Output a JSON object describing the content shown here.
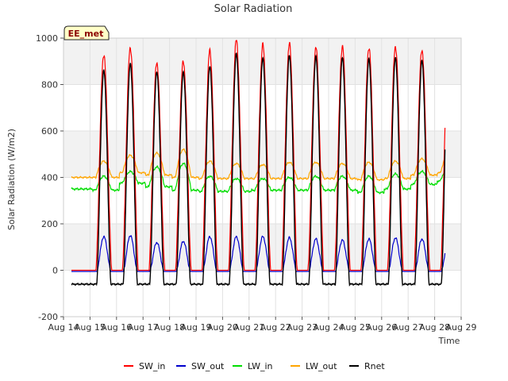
{
  "chart_data": {
    "type": "line",
    "title": "Solar Radiation",
    "xlabel": "Time",
    "ylabel": "Solar Radiation (W/m2)",
    "badge": "EE_met",
    "xlim": [
      14,
      29
    ],
    "ylim": [
      -200,
      1000
    ],
    "x_ticks": [
      "Aug 14",
      "Aug 15",
      "Aug 16",
      "Aug 17",
      "Aug 18",
      "Aug 19",
      "Aug 20",
      "Aug 21",
      "Aug 22",
      "Aug 23",
      "Aug 24",
      "Aug 25",
      "Aug 26",
      "Aug 27",
      "Aug 28",
      "Aug 29"
    ],
    "y_ticks": [
      -200,
      0,
      200,
      400,
      600,
      800,
      1000
    ],
    "grid": true,
    "legend_position": "bottom",
    "series": [
      {
        "name": "SW_in",
        "color": "#ff0000"
      },
      {
        "name": "SW_out",
        "color": "#0000cc"
      },
      {
        "name": "LW_in",
        "color": "#00dd00"
      },
      {
        "name": "LW_out",
        "color": "#ffa500"
      },
      {
        "name": "Rnet",
        "color": "#000000"
      }
    ],
    "data_start": 14.3,
    "data_end": 28.4,
    "days": [
      15,
      16,
      17,
      18,
      19,
      20,
      21,
      22,
      23,
      24,
      25,
      26,
      27,
      28
    ],
    "daily_peak": {
      "SW_in": [
        930,
        960,
        895,
        900,
        945,
        990,
        970,
        975,
        960,
        965,
        960,
        965,
        950,
        935
      ],
      "SW_out": [
        145,
        150,
        120,
        125,
        145,
        145,
        145,
        140,
        135,
        130,
        135,
        140,
        135,
        130
      ],
      "Rnet": [
        860,
        890,
        855,
        855,
        880,
        935,
        915,
        925,
        920,
        915,
        910,
        915,
        905,
        900
      ],
      "LW_in_day": [
        405,
        425,
        445,
        460,
        405,
        395,
        395,
        400,
        405,
        405,
        405,
        415,
        425,
        445
      ],
      "LW_out_day": [
        470,
        495,
        505,
        520,
        470,
        460,
        455,
        465,
        465,
        460,
        465,
        470,
        480,
        500
      ]
    },
    "nightly_baseline": {
      "SW_in": 0,
      "SW_out": -5,
      "Rnet": -60,
      "LW_in": [
        350,
        345,
        375,
        360,
        345,
        340,
        340,
        345,
        345,
        345,
        345,
        335,
        350,
        370,
        385
      ],
      "LW_out": [
        400,
        400,
        420,
        410,
        400,
        395,
        395,
        395,
        395,
        395,
        395,
        390,
        395,
        410,
        420
      ]
    }
  }
}
